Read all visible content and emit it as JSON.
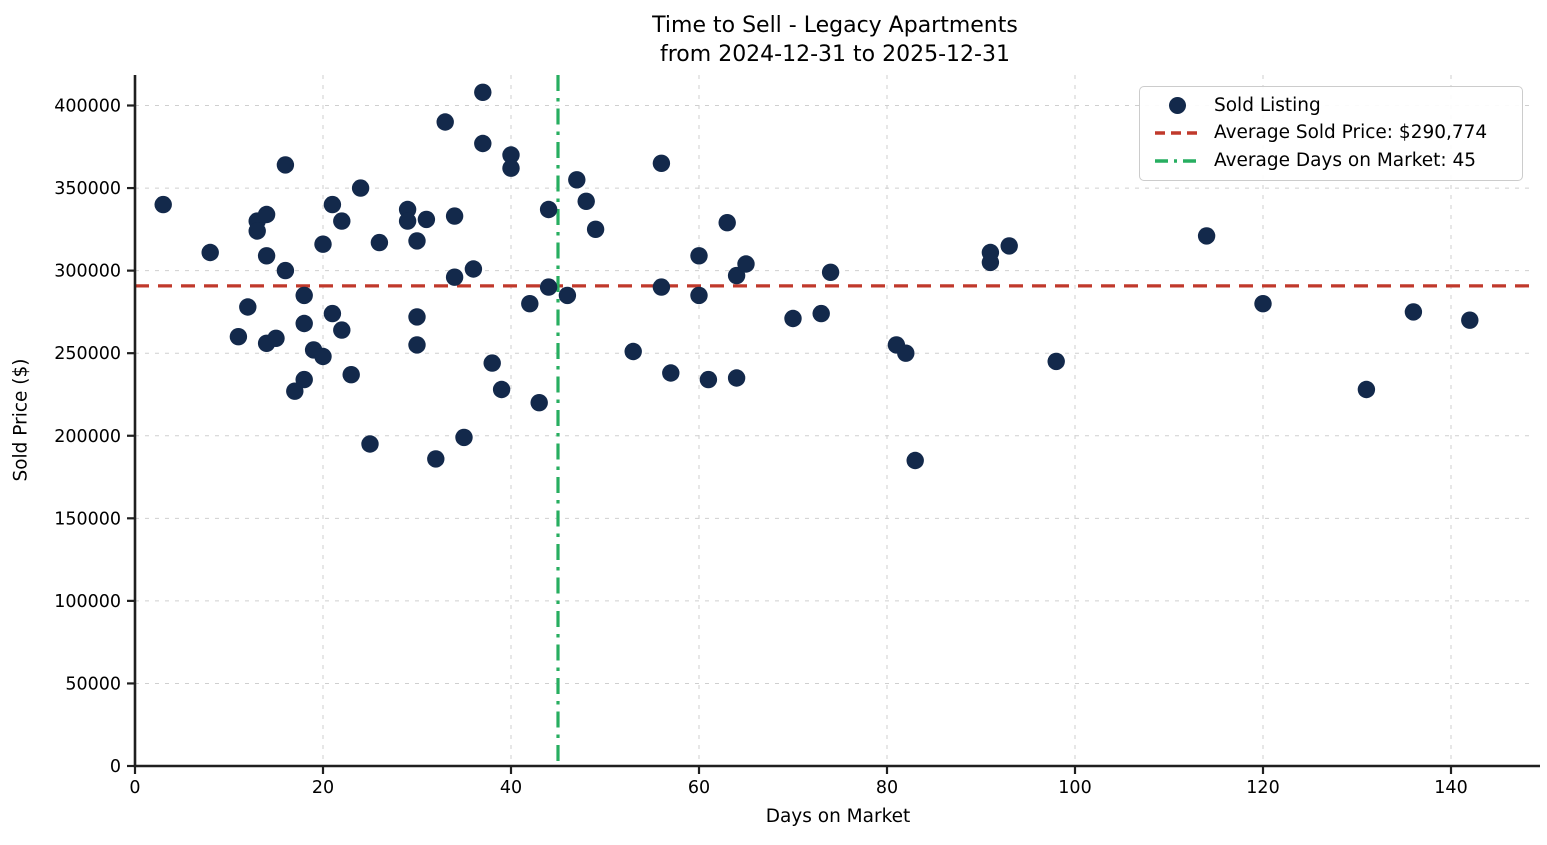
{
  "title": {
    "line1": "Time to Sell - Legacy Apartments",
    "line2": "from 2024-12-31 to 2025-12-31"
  },
  "axes": {
    "x_label": "Days on Market",
    "y_label": "Sold Price ($)",
    "x_ticks": [
      0,
      20,
      40,
      60,
      80,
      100,
      120,
      140
    ],
    "y_ticks": [
      0,
      50000,
      100000,
      150000,
      200000,
      250000,
      300000,
      350000,
      400000
    ]
  },
  "legend": {
    "items": [
      {
        "label": "Sold Listing",
        "marker": "dot"
      },
      {
        "label": "Average Sold Price: $290,774",
        "marker": "dashed-line"
      },
      {
        "label": "Average Days on Market: 45",
        "marker": "dashdot-line"
      }
    ]
  },
  "colors": {
    "dot": "#13294b",
    "avg_price_line": "#c0392b",
    "avg_days_line": "#27ae60",
    "grid": "#cfcfcf",
    "axis": "#1f1f1f",
    "text": "#000000"
  },
  "chart_data": {
    "type": "scatter",
    "title": "Time to Sell - Legacy Apartments from 2024-12-31 to 2025-12-31",
    "xlabel": "Days on Market",
    "ylabel": "Sold Price ($)",
    "xlim": [
      0,
      149
    ],
    "ylim": [
      0,
      418000
    ],
    "x_ticks": [
      0,
      20,
      40,
      60,
      80,
      100,
      120,
      140
    ],
    "y_ticks": [
      0,
      50000,
      100000,
      150000,
      200000,
      250000,
      300000,
      350000,
      400000
    ],
    "grid": true,
    "legend_position": "upper right",
    "series": [
      {
        "name": "Sold Listing",
        "points": [
          [
            3,
            340000
          ],
          [
            8,
            311000
          ],
          [
            11,
            260000
          ],
          [
            12,
            278000
          ],
          [
            13,
            330000
          ],
          [
            13,
            324000
          ],
          [
            14,
            334000
          ],
          [
            14,
            309000
          ],
          [
            14,
            256000
          ],
          [
            15,
            259000
          ],
          [
            16,
            364000
          ],
          [
            16,
            300000
          ],
          [
            17,
            227000
          ],
          [
            18,
            285000
          ],
          [
            18,
            268000
          ],
          [
            18,
            234000
          ],
          [
            19,
            252000
          ],
          [
            20,
            316000
          ],
          [
            20,
            248000
          ],
          [
            21,
            340000
          ],
          [
            21,
            274000
          ],
          [
            22,
            330000
          ],
          [
            22,
            264000
          ],
          [
            23,
            237000
          ],
          [
            24,
            350000
          ],
          [
            25,
            195000
          ],
          [
            26,
            317000
          ],
          [
            29,
            337000
          ],
          [
            29,
            330000
          ],
          [
            30,
            318000
          ],
          [
            30,
            272000
          ],
          [
            30,
            255000
          ],
          [
            31,
            331000
          ],
          [
            32,
            186000
          ],
          [
            33,
            390000
          ],
          [
            34,
            333000
          ],
          [
            34,
            296000
          ],
          [
            35,
            199000
          ],
          [
            36,
            301000
          ],
          [
            37,
            408000
          ],
          [
            37,
            377000
          ],
          [
            38,
            244000
          ],
          [
            39,
            228000
          ],
          [
            40,
            370000
          ],
          [
            40,
            362000
          ],
          [
            42,
            280000
          ],
          [
            43,
            220000
          ],
          [
            44,
            337000
          ],
          [
            44,
            290000
          ],
          [
            46,
            285000
          ],
          [
            47,
            355000
          ],
          [
            48,
            342000
          ],
          [
            49,
            325000
          ],
          [
            53,
            251000
          ],
          [
            56,
            365000
          ],
          [
            56,
            290000
          ],
          [
            57,
            238000
          ],
          [
            60,
            309000
          ],
          [
            60,
            285000
          ],
          [
            61,
            234000
          ],
          [
            63,
            329000
          ],
          [
            64,
            297000
          ],
          [
            64,
            235000
          ],
          [
            65,
            304000
          ],
          [
            70,
            271000
          ],
          [
            73,
            274000
          ],
          [
            74,
            299000
          ],
          [
            81,
            255000
          ],
          [
            82,
            250000
          ],
          [
            83,
            185000
          ],
          [
            91,
            311000
          ],
          [
            91,
            305000
          ],
          [
            93,
            315000
          ],
          [
            98,
            245000
          ],
          [
            114,
            321000
          ],
          [
            120,
            280000
          ],
          [
            131,
            228000
          ],
          [
            136,
            275000
          ],
          [
            142,
            270000
          ]
        ]
      }
    ],
    "reference_lines": [
      {
        "name": "Average Sold Price",
        "orientation": "horizontal",
        "value": 290774,
        "style": "dashed",
        "color": "#c0392b"
      },
      {
        "name": "Average Days on Market",
        "orientation": "vertical",
        "value": 45,
        "style": "dashdot",
        "color": "#27ae60"
      }
    ]
  }
}
